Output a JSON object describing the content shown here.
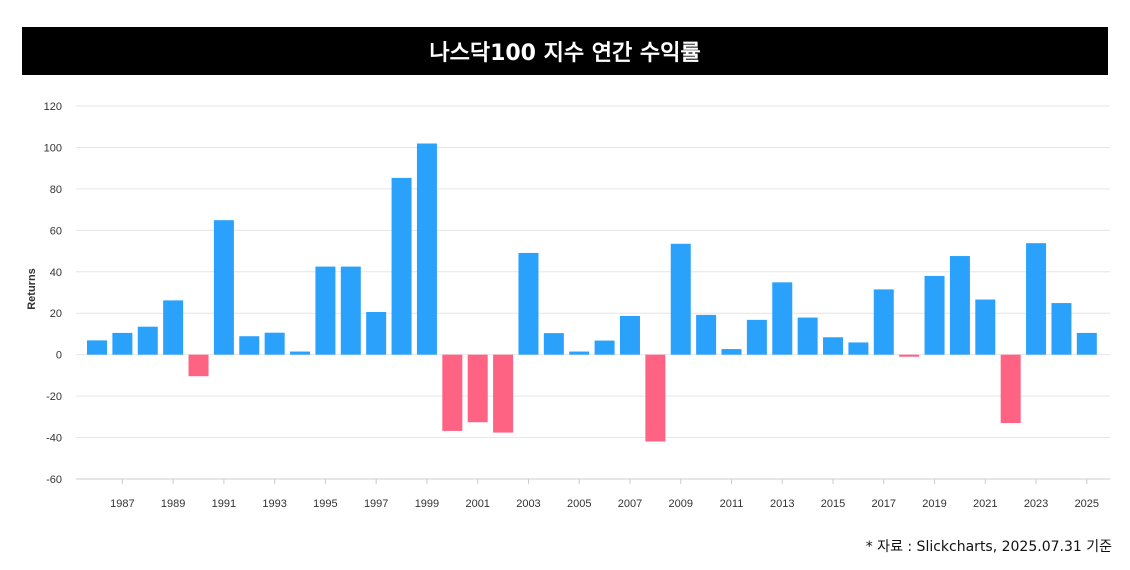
{
  "header": {
    "title": "나스닥100 지수 연간 수익률"
  },
  "footer": {
    "source": "* 자료 : Slickcharts, 2025.07.31 기준"
  },
  "colors": {
    "positive": "#2aa2fb",
    "negative": "#ff6384",
    "grid": "#e6e6e6"
  },
  "chart_data": {
    "type": "bar",
    "title": "나스닥100 지수 연간 수익률",
    "ylabel": "Returns",
    "xlabel": "",
    "ylim": [
      -60,
      120
    ],
    "yticks": [
      120,
      100,
      80,
      60,
      40,
      20,
      0,
      -20,
      -40,
      -60
    ],
    "xtick_labels": [
      "1987",
      "1989",
      "1991",
      "1993",
      "1995",
      "1997",
      "1999",
      "2001",
      "2003",
      "2005",
      "2007",
      "2009",
      "2011",
      "2013",
      "2015",
      "2017",
      "2019",
      "2021",
      "2023",
      "2025"
    ],
    "categories": [
      "1986",
      "1987",
      "1988",
      "1989",
      "1990",
      "1991",
      "1992",
      "1993",
      "1994",
      "1995",
      "1996",
      "1997",
      "1998",
      "1999",
      "2000",
      "2001",
      "2002",
      "2003",
      "2004",
      "2005",
      "2006",
      "2007",
      "2008",
      "2009",
      "2010",
      "2011",
      "2012",
      "2013",
      "2014",
      "2015",
      "2016",
      "2017",
      "2018",
      "2019",
      "2020",
      "2021",
      "2022",
      "2023",
      "2024",
      "2025"
    ],
    "values": [
      6.9,
      10.5,
      13.5,
      26.2,
      -10.4,
      64.9,
      8.9,
      10.6,
      1.5,
      42.5,
      42.5,
      20.6,
      85.3,
      101.9,
      -36.8,
      -32.6,
      -37.6,
      49.1,
      10.4,
      1.5,
      6.8,
      18.7,
      -41.9,
      53.5,
      19.2,
      2.7,
      16.8,
      34.9,
      17.9,
      8.4,
      5.9,
      31.5,
      -1.0,
      38.0,
      47.6,
      26.6,
      -33.0,
      53.8,
      24.9,
      10.5
    ],
    "grid": true,
    "legend": "none"
  }
}
